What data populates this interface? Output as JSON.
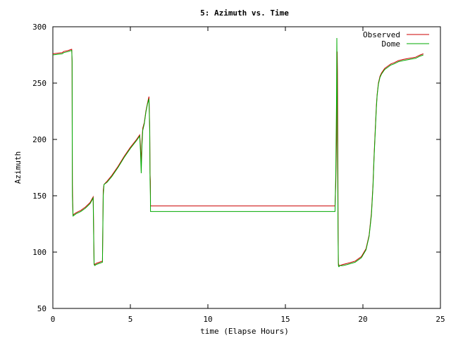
{
  "chart_data": {
    "type": "line",
    "title": "5: Azimuth vs. Time",
    "xlabel": "time (Elapse Hours)",
    "ylabel": "Azimuth",
    "xlim": [
      0,
      25
    ],
    "ylim": [
      50,
      300
    ],
    "xticks": [
      0,
      5,
      10,
      15,
      20,
      25
    ],
    "yticks": [
      50,
      100,
      150,
      200,
      250,
      300
    ],
    "xtick_labels": [
      "0",
      "5",
      "10",
      "15",
      "20",
      "25"
    ],
    "ytick_labels": [
      "50",
      "100",
      "150",
      "200",
      "250",
      "300"
    ],
    "grid": false,
    "legend_position": "top-right",
    "series": [
      {
        "name": "Observed",
        "color": "#cc0000",
        "x": [
          0,
          0.6,
          0.7,
          1.0,
          1.2,
          1.22,
          1.24,
          1.25,
          1.26,
          1.3,
          1.5,
          1.8,
          2.1,
          2.4,
          2.6,
          2.62,
          2.64,
          2.66,
          2.7,
          2.8,
          3.0,
          3.2,
          3.25,
          3.3,
          3.5,
          3.8,
          4.2,
          4.6,
          5.0,
          5.4,
          5.6,
          5.65,
          5.7,
          5.75,
          5.8,
          5.9,
          6.0,
          6.1,
          6.2,
          6.25,
          6.27,
          6.29,
          6.3,
          6.35,
          6.4,
          8.0,
          10.0,
          12.0,
          14.0,
          16.0,
          18.2,
          18.25,
          18.3,
          18.32,
          18.34,
          18.36,
          18.38,
          18.4,
          18.42,
          18.44,
          18.46,
          18.5,
          18.7,
          19.0,
          19.5,
          19.9,
          20.2,
          20.4,
          20.55,
          20.65,
          20.72,
          20.8,
          20.87,
          20.92,
          21.0,
          21.1,
          21.2,
          21.4,
          21.6,
          21.8,
          22.0,
          22.3,
          22.6,
          23.0,
          23.4,
          23.7,
          23.9
        ],
        "y": [
          276,
          277,
          278,
          279,
          280,
          280,
          270,
          200,
          160,
          133,
          135,
          137,
          140,
          144,
          149,
          135,
          110,
          90,
          89,
          90,
          91,
          92,
          155,
          160,
          163,
          168,
          176,
          185,
          193,
          200,
          204,
          195,
          180,
          200,
          210,
          215,
          225,
          232,
          238,
          210,
          170,
          163,
          141,
          141,
          141,
          141,
          141,
          141,
          141,
          141,
          141,
          160,
          200,
          250,
          278,
          260,
          200,
          120,
          90,
          89,
          88,
          88,
          89,
          90,
          92,
          96,
          103,
          115,
          135,
          160,
          185,
          210,
          230,
          240,
          250,
          256,
          259,
          263,
          265,
          267,
          268,
          270,
          271,
          272,
          273,
          275,
          276
        ]
      },
      {
        "name": "Dome",
        "color": "#00aa00",
        "x": [
          0,
          0.6,
          0.7,
          1.0,
          1.2,
          1.22,
          1.24,
          1.25,
          1.26,
          1.3,
          1.5,
          1.8,
          2.1,
          2.4,
          2.6,
          2.62,
          2.64,
          2.66,
          2.7,
          2.8,
          3.0,
          3.2,
          3.25,
          3.3,
          3.5,
          3.8,
          4.2,
          4.6,
          5.0,
          5.4,
          5.6,
          5.65,
          5.7,
          5.75,
          5.8,
          5.9,
          6.0,
          6.1,
          6.2,
          6.25,
          6.27,
          6.29,
          6.3,
          6.35,
          6.4,
          8.0,
          10.0,
          12.0,
          14.0,
          16.0,
          18.2,
          18.25,
          18.3,
          18.32,
          18.34,
          18.36,
          18.38,
          18.4,
          18.42,
          18.44,
          18.46,
          18.5,
          18.7,
          19.0,
          19.5,
          19.9,
          20.2,
          20.4,
          20.55,
          20.65,
          20.72,
          20.8,
          20.87,
          20.92,
          21.0,
          21.1,
          21.2,
          21.4,
          21.6,
          21.8,
          22.0,
          22.3,
          22.6,
          23.0,
          23.4,
          23.7,
          23.9
        ],
        "y": [
          275,
          276,
          277,
          278,
          279,
          279,
          269,
          205,
          150,
          132,
          134,
          136,
          139,
          143,
          148,
          130,
          105,
          89,
          88,
          89,
          90,
          91,
          150,
          160,
          162,
          167,
          175,
          184,
          192,
          199,
          203,
          190,
          170,
          195,
          208,
          214,
          224,
          231,
          236,
          205,
          165,
          150,
          136,
          136,
          136,
          136,
          136,
          136,
          136,
          136,
          136,
          170,
          240,
          290,
          240,
          200,
          150,
          110,
          88,
          87,
          87,
          88,
          88,
          89,
          91,
          95,
          102,
          114,
          133,
          158,
          183,
          208,
          228,
          239,
          249,
          255,
          258,
          262,
          264,
          266,
          267,
          269,
          270,
          271,
          272,
          274,
          275
        ]
      }
    ]
  }
}
